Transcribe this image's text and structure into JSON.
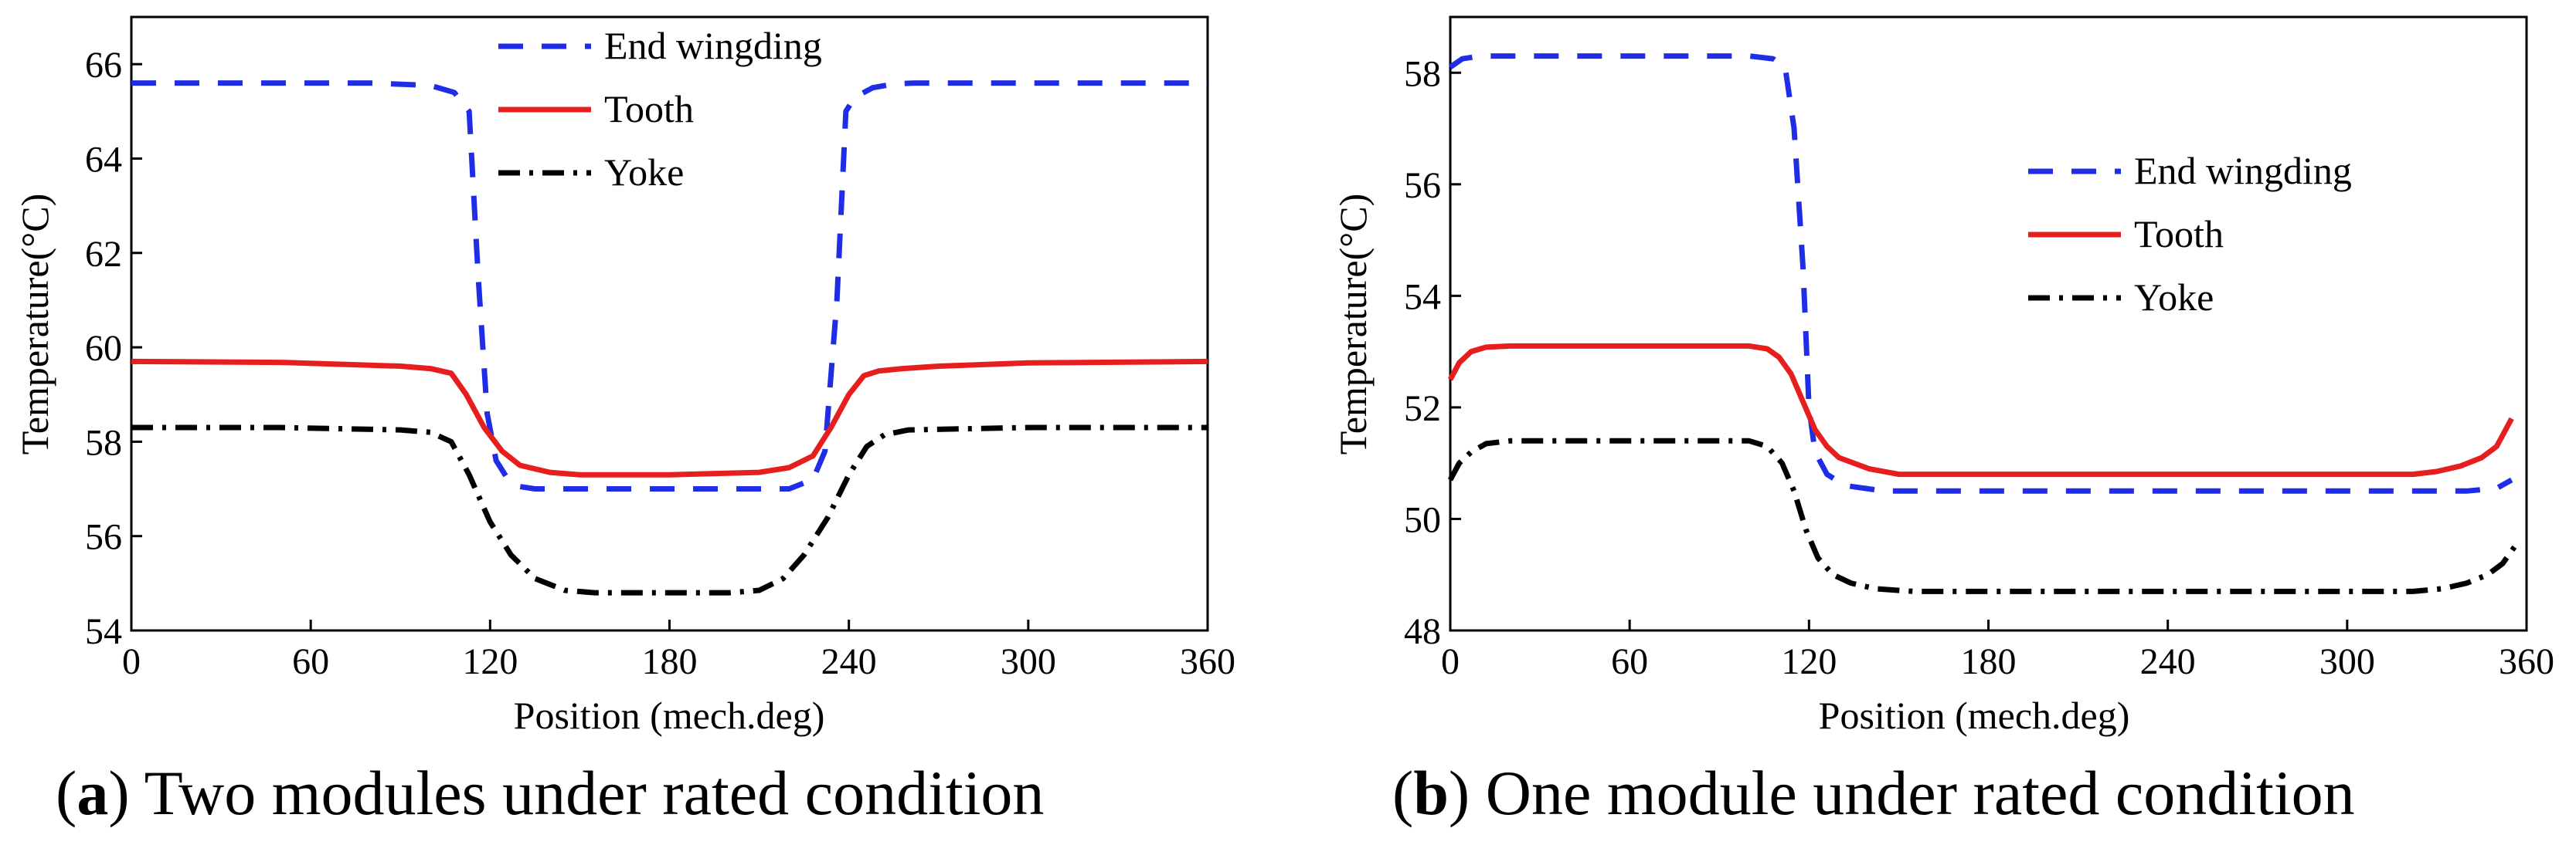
{
  "colors": {
    "end_winding": "#1f2ee6",
    "tooth": "#e61e1e",
    "yoke": "#000000",
    "axis": "#000000"
  },
  "chart_data": [
    {
      "type": "line",
      "caption": {
        "letter": "a",
        "text": "Two modules under rated condition"
      },
      "xlabel": "Position (mech.deg)",
      "ylabel": "Temperature(°C)",
      "xlim": [
        0,
        360
      ],
      "ylim": [
        54,
        67
      ],
      "xticks": [
        0,
        60,
        120,
        180,
        240,
        300,
        360
      ],
      "yticks": [
        54,
        56,
        58,
        60,
        62,
        64,
        66
      ],
      "legend_position": "top-center",
      "series": [
        {
          "name": "End wingding",
          "style": "dashed",
          "color": "#1f2ee6",
          "x": [
            0,
            40,
            80,
            100,
            108,
            113,
            116,
            119,
            122,
            126,
            130,
            135,
            140,
            180,
            220,
            228,
            232,
            236,
            239,
            242,
            248,
            255,
            262,
            300,
            360
          ],
          "y": [
            65.6,
            65.6,
            65.6,
            65.55,
            65.4,
            65.0,
            61.5,
            58.6,
            57.6,
            57.2,
            57.05,
            57.0,
            57.0,
            57.0,
            57.0,
            57.2,
            57.8,
            61.0,
            65.0,
            65.3,
            65.5,
            65.58,
            65.6,
            65.6,
            65.6
          ]
        },
        {
          "name": "Tooth",
          "style": "solid",
          "color": "#e61e1e",
          "x": [
            0,
            50,
            90,
            100,
            107,
            112,
            118,
            124,
            130,
            140,
            150,
            180,
            210,
            220,
            228,
            234,
            240,
            245,
            250,
            258,
            270,
            300,
            360
          ],
          "y": [
            59.7,
            59.68,
            59.6,
            59.55,
            59.45,
            59.0,
            58.3,
            57.8,
            57.5,
            57.35,
            57.3,
            57.3,
            57.35,
            57.45,
            57.7,
            58.3,
            59.0,
            59.4,
            59.5,
            59.55,
            59.6,
            59.67,
            59.7
          ]
        },
        {
          "name": "Yoke",
          "style": "dashdot",
          "color": "#000000",
          "x": [
            0,
            50,
            90,
            100,
            107,
            113,
            120,
            127,
            135,
            145,
            155,
            200,
            210,
            218,
            225,
            233,
            240,
            246,
            252,
            260,
            300,
            360
          ],
          "y": [
            58.3,
            58.3,
            58.25,
            58.2,
            58.0,
            57.3,
            56.3,
            55.6,
            55.1,
            54.85,
            54.8,
            54.8,
            54.85,
            55.1,
            55.6,
            56.4,
            57.3,
            57.9,
            58.15,
            58.25,
            58.3,
            58.3
          ]
        }
      ]
    },
    {
      "type": "line",
      "caption": {
        "letter": "b",
        "text": "One module under rated condition"
      },
      "xlabel": "Position (mech.deg)",
      "ylabel": "Temperature(°C)",
      "xlim": [
        0,
        360
      ],
      "ylim": [
        48,
        59
      ],
      "xticks": [
        0,
        60,
        120,
        180,
        240,
        300,
        360
      ],
      "yticks": [
        48,
        50,
        52,
        54,
        56,
        58
      ],
      "legend_position": "top-right",
      "series": [
        {
          "name": "End wingding",
          "style": "dashed",
          "color": "#1f2ee6",
          "x": [
            0,
            4,
            10,
            50,
            100,
            108,
            112,
            115,
            118,
            120,
            122,
            126,
            132,
            145,
            200,
            300,
            340,
            350,
            355
          ],
          "y": [
            58.1,
            58.25,
            58.3,
            58.3,
            58.3,
            58.25,
            58.1,
            57.0,
            54.5,
            52.0,
            51.2,
            50.8,
            50.6,
            50.5,
            50.5,
            50.5,
            50.5,
            50.55,
            50.7
          ]
        },
        {
          "name": "Tooth",
          "style": "solid",
          "color": "#e61e1e",
          "x": [
            0,
            3,
            7,
            12,
            20,
            60,
            100,
            106,
            110,
            114,
            118,
            122,
            126,
            130,
            140,
            150,
            200,
            300,
            322,
            330,
            338,
            345,
            350,
            355
          ],
          "y": [
            52.5,
            52.8,
            53.0,
            53.08,
            53.1,
            53.1,
            53.1,
            53.05,
            52.9,
            52.6,
            52.1,
            51.6,
            51.3,
            51.1,
            50.9,
            50.8,
            50.8,
            50.8,
            50.8,
            50.85,
            50.95,
            51.1,
            51.3,
            51.8
          ]
        },
        {
          "name": "Yoke",
          "style": "dashdot",
          "color": "#000000",
          "x": [
            0,
            3,
            7,
            12,
            20,
            60,
            100,
            106,
            111,
            115,
            119,
            123,
            128,
            134,
            142,
            155,
            200,
            300,
            322,
            332,
            340,
            347,
            352,
            356
          ],
          "y": [
            50.7,
            51.0,
            51.2,
            51.35,
            51.4,
            51.4,
            51.4,
            51.3,
            51.0,
            50.5,
            49.8,
            49.3,
            49.0,
            48.85,
            48.75,
            48.7,
            48.7,
            48.7,
            48.7,
            48.75,
            48.85,
            49.0,
            49.2,
            49.5
          ]
        }
      ]
    }
  ]
}
